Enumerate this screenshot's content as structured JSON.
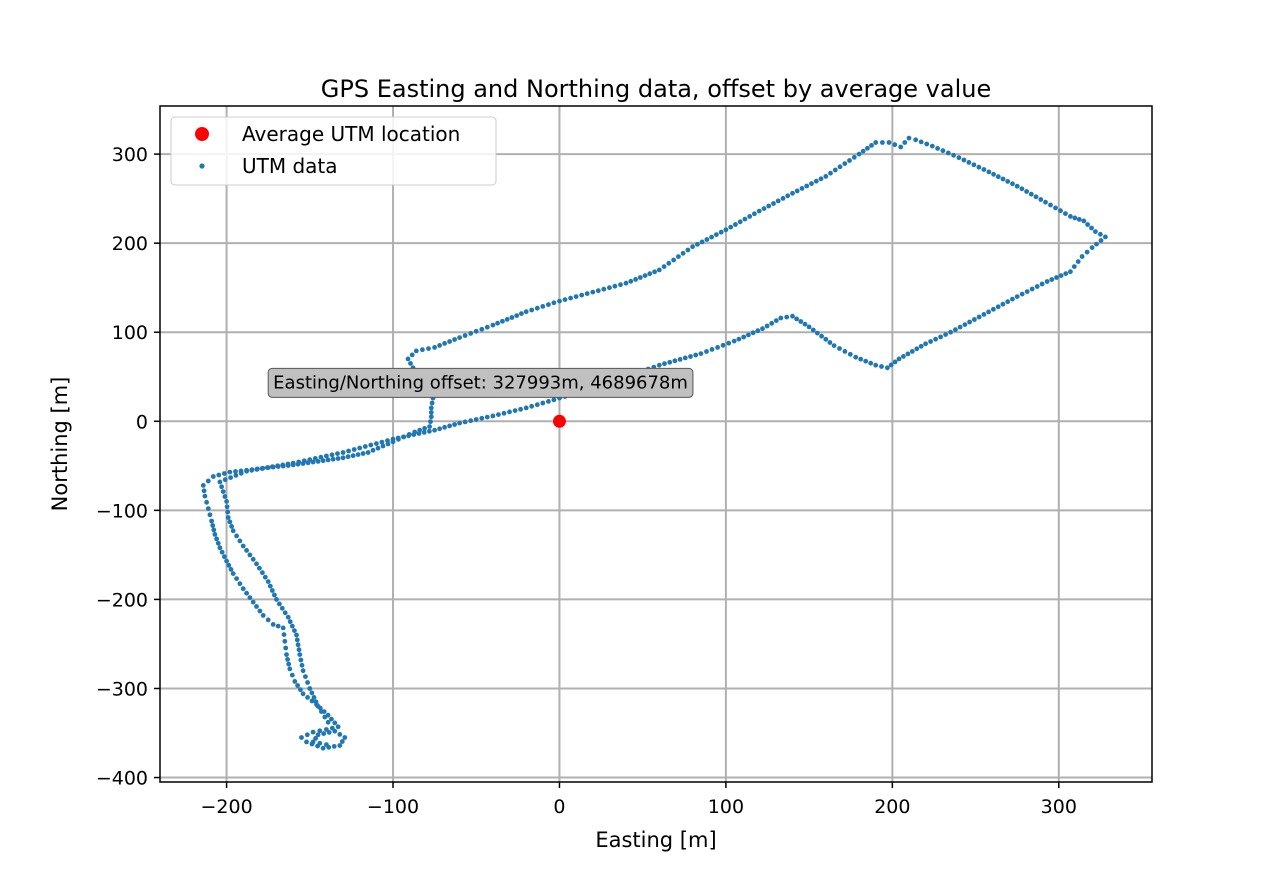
{
  "chart_data": {
    "type": "scatter",
    "title": "GPS Easting and Northing data, offset by average value",
    "xlabel": "Easting [m]",
    "ylabel": "Northing [m]",
    "xlim": [
      -240,
      356
    ],
    "ylim": [
      -405,
      354
    ],
    "xticks": [
      -200,
      -100,
      0,
      100,
      200,
      300
    ],
    "yticks": [
      -400,
      -300,
      -200,
      -100,
      0,
      100,
      200,
      300
    ],
    "xtick_labels": [
      "−200",
      "−100",
      "0",
      "100",
      "200",
      "300"
    ],
    "ytick_labels": [
      "−400",
      "−300",
      "−200",
      "−100",
      "0",
      "100",
      "200",
      "300"
    ],
    "grid": true,
    "legend_position": "top-left",
    "legend": [
      {
        "label": "Average UTM location",
        "color": "#ff0000",
        "marker": "large-dot"
      },
      {
        "label": "UTM data",
        "color": "#1f77b4",
        "marker": "small-dot"
      }
    ],
    "annotation": {
      "text": "Easting/Northing offset: 327993m, 4689678m",
      "x": -172,
      "y": 37
    },
    "series": [
      {
        "name": "Average UTM location",
        "color": "#ff0000",
        "points": [
          [
            0,
            0
          ]
        ]
      },
      {
        "name": "UTM data",
        "color": "#1f77b4",
        "path": [
          [
            -140,
            -363
          ],
          [
            -148,
            -360
          ],
          [
            -145,
            -352
          ],
          [
            -135,
            -348
          ],
          [
            -129,
            -355
          ],
          [
            -132,
            -364
          ],
          [
            -142,
            -367
          ],
          [
            -152,
            -360
          ],
          [
            -155,
            -355
          ],
          [
            -148,
            -349
          ],
          [
            -140,
            -346
          ],
          [
            -133,
            -343
          ],
          [
            -139,
            -330
          ],
          [
            -146,
            -318
          ],
          [
            -154,
            -306
          ],
          [
            -159,
            -292
          ],
          [
            -162,
            -278
          ],
          [
            -164,
            -262
          ],
          [
            -165,
            -247
          ],
          [
            -166,
            -232
          ],
          [
            -172,
            -228
          ],
          [
            -178,
            -218
          ],
          [
            -184,
            -203
          ],
          [
            -190,
            -188
          ],
          [
            -196,
            -171
          ],
          [
            -200,
            -157
          ],
          [
            -204,
            -142
          ],
          [
            -207,
            -127
          ],
          [
            -209,
            -112
          ],
          [
            -211,
            -98
          ],
          [
            -213,
            -84
          ],
          [
            -214,
            -72
          ],
          [
            -208,
            -62
          ],
          [
            -198,
            -57
          ],
          [
            -188,
            -55
          ],
          [
            -175,
            -52
          ],
          [
            -160,
            -49
          ],
          [
            -145,
            -45
          ],
          [
            -130,
            -41
          ],
          [
            -115,
            -35
          ],
          [
            -100,
            -23
          ],
          [
            -87,
            -12
          ],
          [
            -78,
            -6
          ],
          [
            -77,
            5
          ],
          [
            -77,
            15
          ],
          [
            -76,
            26
          ],
          [
            -80,
            38
          ],
          [
            -84,
            50
          ],
          [
            -88,
            60
          ],
          [
            -91,
            70
          ],
          [
            -86,
            79
          ],
          [
            -75,
            83
          ],
          [
            -60,
            94
          ],
          [
            -40,
            108
          ],
          [
            -20,
            123
          ],
          [
            0,
            135
          ],
          [
            20,
            145
          ],
          [
            40,
            155
          ],
          [
            60,
            170
          ],
          [
            80,
            196
          ],
          [
            100,
            215
          ],
          [
            120,
            236
          ],
          [
            140,
            256
          ],
          [
            160,
            275
          ],
          [
            180,
            300
          ],
          [
            190,
            313
          ],
          [
            198,
            313
          ],
          [
            205,
            308
          ],
          [
            210,
            318
          ],
          [
            214,
            316
          ],
          [
            224,
            309
          ],
          [
            240,
            296
          ],
          [
            258,
            280
          ],
          [
            275,
            264
          ],
          [
            292,
            246
          ],
          [
            307,
            230
          ],
          [
            315,
            225
          ],
          [
            322,
            213
          ],
          [
            328,
            207
          ],
          [
            320,
            195
          ],
          [
            314,
            185
          ],
          [
            307,
            168
          ],
          [
            293,
            157
          ],
          [
            275,
            140
          ],
          [
            255,
            120
          ],
          [
            235,
            100
          ],
          [
            220,
            87
          ],
          [
            204,
            70
          ],
          [
            197,
            60
          ],
          [
            190,
            63
          ],
          [
            178,
            72
          ],
          [
            165,
            85
          ],
          [
            150,
            106
          ],
          [
            140,
            118
          ],
          [
            133,
            116
          ],
          [
            122,
            104
          ],
          [
            105,
            90
          ],
          [
            85,
            76
          ],
          [
            60,
            63
          ],
          [
            40,
            50
          ],
          [
            20,
            37
          ],
          [
            0,
            26
          ],
          [
            -20,
            15
          ],
          [
            -40,
            6
          ],
          [
            -60,
            -2
          ],
          [
            -75,
            -10
          ],
          [
            -100,
            -20
          ],
          [
            -130,
            -35
          ],
          [
            -160,
            -47
          ],
          [
            -188,
            -56
          ],
          [
            -204,
            -68
          ],
          [
            -200,
            -90
          ],
          [
            -199,
            -108
          ],
          [
            -196,
            -123
          ],
          [
            -190,
            -140
          ],
          [
            -182,
            -160
          ],
          [
            -175,
            -180
          ],
          [
            -170,
            -200
          ],
          [
            -163,
            -220
          ],
          [
            -158,
            -240
          ],
          [
            -156,
            -262
          ],
          [
            -154,
            -280
          ],
          [
            -150,
            -300
          ],
          [
            -145,
            -320
          ],
          [
            -139,
            -338
          ]
        ]
      }
    ]
  }
}
